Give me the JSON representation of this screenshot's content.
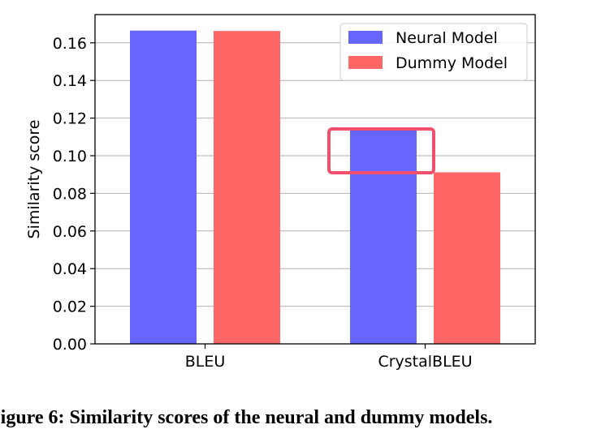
{
  "chart_data": {
    "type": "bar",
    "categories": [
      "BLEU",
      "CrystalBLEU"
    ],
    "series": [
      {
        "name": "Neural Model",
        "values": [
          0.1665,
          0.1138
        ],
        "color": "#6666ff"
      },
      {
        "name": "Dummy Model",
        "values": [
          0.1663,
          0.0912
        ],
        "color": "#ff6666"
      }
    ],
    "ylabel": "Similarity score",
    "xlabel": "",
    "ylim": [
      0,
      0.175
    ],
    "yticks": [
      "0.00",
      "0.02",
      "0.04",
      "0.06",
      "0.08",
      "0.10",
      "0.12",
      "0.14",
      "0.16"
    ],
    "grid": "horizontal",
    "legend_position": "top-right",
    "highlight": {
      "category": "CrystalBLEU",
      "color": "#f0506e"
    }
  },
  "caption": "Figure 6: Similarity scores of the neural and dummy models."
}
